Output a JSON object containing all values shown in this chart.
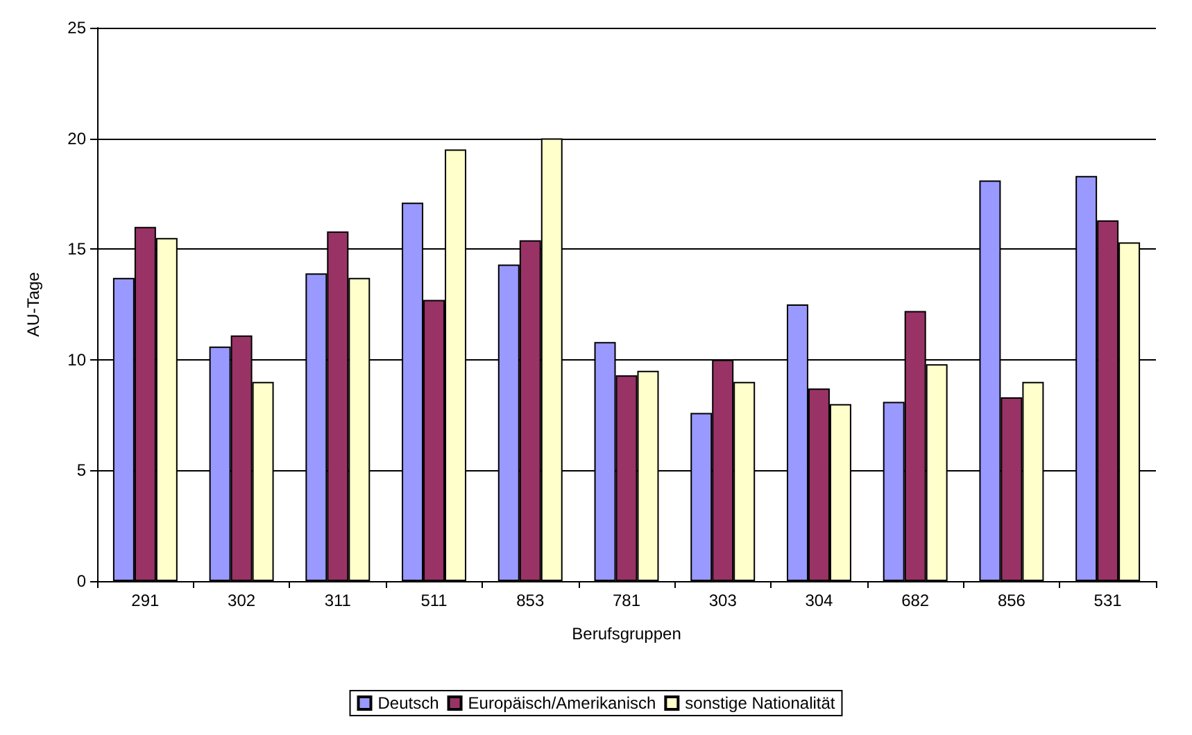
{
  "chart_data": {
    "type": "bar",
    "xlabel": "Berufsgruppen",
    "ylabel": "AU-Tage",
    "categories": [
      "291",
      "302",
      "311",
      "511",
      "853",
      "781",
      "303",
      "304",
      "682",
      "856",
      "531"
    ],
    "series": [
      {
        "name": "Deutsch",
        "color": "#9999ff",
        "values": [
          13.7,
          10.6,
          13.9,
          17.1,
          14.3,
          10.8,
          7.6,
          12.5,
          8.1,
          18.1,
          18.3
        ]
      },
      {
        "name": "Europäisch/Amerikanisch",
        "color": "#993366",
        "values": [
          16.0,
          11.1,
          15.8,
          12.7,
          15.4,
          9.3,
          10.0,
          8.7,
          12.2,
          8.3,
          16.3
        ]
      },
      {
        "name": "sonstige Nationalität",
        "color": "#ffffcc",
        "values": [
          15.5,
          9.0,
          13.7,
          19.5,
          20.0,
          9.5,
          9.0,
          8.0,
          9.8,
          9.0,
          15.3
        ]
      }
    ],
    "ylim": [
      0,
      25
    ],
    "yticks": [
      0,
      5,
      10,
      15,
      20,
      25
    ],
    "grid": "y",
    "legend": "bottom"
  }
}
